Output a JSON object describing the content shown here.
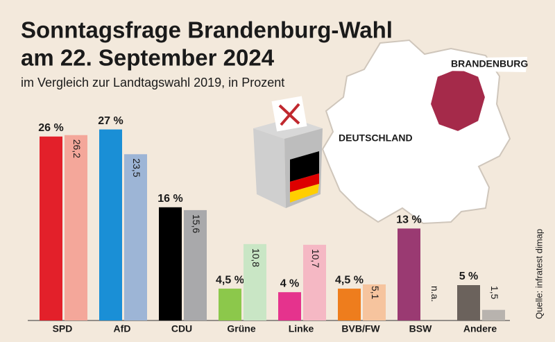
{
  "chart_data": {
    "type": "bar",
    "title": [
      "Sonntagsfrage Brandenburg-Wahl",
      "am 22. September 2024"
    ],
    "subtitle": "im Vergleich zur Landtagswahl 2019, in Prozent",
    "annotations": [
      "DEUTSCHLAND",
      "BRANDENBURG"
    ],
    "source": "Quelle: infratest dimap",
    "categories": [
      "SPD",
      "AfD",
      "CDU",
      "Grüne",
      "Linke",
      "BVB/FW",
      "BSW",
      "Andere"
    ],
    "series": [
      {
        "colors": [
          "#e3202a",
          "#1a8fd6",
          "#000000",
          "#8cc84b",
          "#e5338d",
          "#ee7d1d",
          "#9a3a72",
          "#6b625c"
        ],
        "values": [
          26,
          27,
          16,
          4.5,
          4,
          4.5,
          13,
          5
        ],
        "value_labels": [
          "26 %",
          "27 %",
          "16 %",
          "4,5 %",
          "4 %",
          "4,5 %",
          "13 %",
          "5 %"
        ]
      },
      {
        "colors": [
          "#f4a79a",
          "#9db5d6",
          "#a9a9ab",
          "#c9e6c5",
          "#f5b8c4",
          "#f6c49e",
          "#d9c3cf",
          "#b8b3ae"
        ],
        "values": [
          26.2,
          23.5,
          15.6,
          10.8,
          10.7,
          5.1,
          null,
          1.5
        ],
        "value_labels": [
          "26,2",
          "23,5",
          "15,6",
          "10,8",
          "10,7",
          "5,1",
          "n.a.",
          "1,5"
        ]
      }
    ]
  }
}
